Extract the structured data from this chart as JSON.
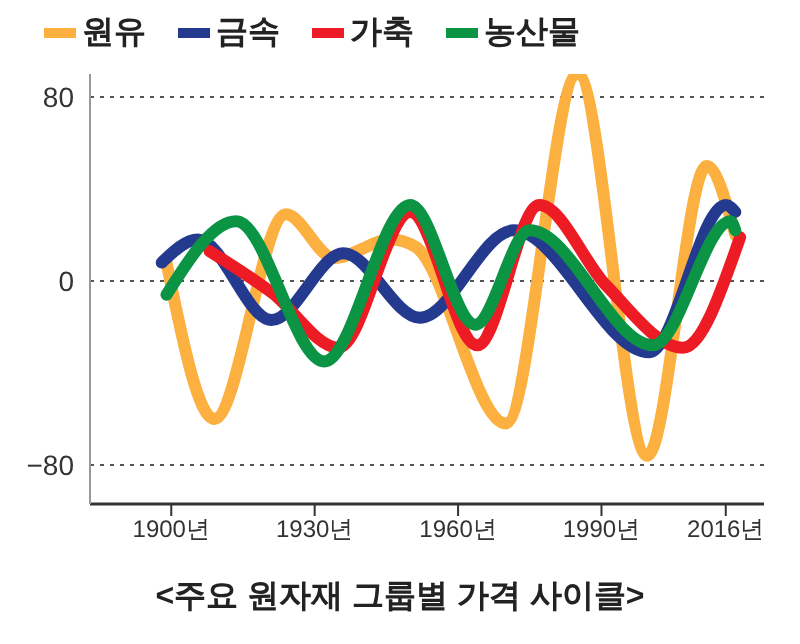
{
  "chart_data": {
    "type": "line",
    "title": "<주요 원자재 그룹별 가격 사이클>",
    "xlim": [
      1883,
      2024
    ],
    "xticks": [
      {
        "value": 1900,
        "label": "1900년"
      },
      {
        "value": 1930,
        "label": "1930년"
      },
      {
        "value": 1960,
        "label": "1960년"
      },
      {
        "value": 1990,
        "label": "1990년"
      },
      {
        "value": 2016,
        "label": "2016년"
      }
    ],
    "ylim": [
      -97,
      90
    ],
    "yticks": [
      {
        "value": -80,
        "label": "−80"
      },
      0,
      80
    ],
    "grid": "y",
    "legend": "top left",
    "marker": "none",
    "line_style": "solid",
    "series": [
      {
        "name": "원유",
        "color": "#fbb040",
        "x": [
          1899,
          1909,
          1924,
          1934,
          1946,
          1951,
          1970,
          1985,
          1999.6,
          2012,
          2018
        ],
        "values": [
          8,
          -60,
          29,
          10,
          18,
          15,
          -62,
          90,
          -76,
          50,
          20
        ]
      },
      {
        "name": "금속",
        "color": "#233a8f",
        "x": [
          1898,
          1905.6,
          1921,
          1936,
          1952,
          1971.6,
          2000,
          2016,
          2018
        ],
        "values": [
          8,
          18,
          -17,
          12,
          -16,
          22,
          -31,
          33,
          30
        ]
      },
      {
        "name": "가축",
        "color": "#ed1c24",
        "x": [
          1908,
          1921,
          1935,
          1950,
          1964,
          1977,
          1991,
          2007,
          2019
        ],
        "values": [
          13,
          -5,
          -29,
          30,
          -28,
          33,
          -2,
          -29,
          19
        ]
      },
      {
        "name": "농산물",
        "color": "#0a9444",
        "x": [
          1899,
          1913.6,
          1932,
          1950,
          1963.6,
          1975,
          2000.8,
          2017,
          2018
        ],
        "values": [
          -6,
          26,
          -35,
          33,
          -19,
          22,
          -28,
          26,
          22
        ]
      }
    ]
  }
}
